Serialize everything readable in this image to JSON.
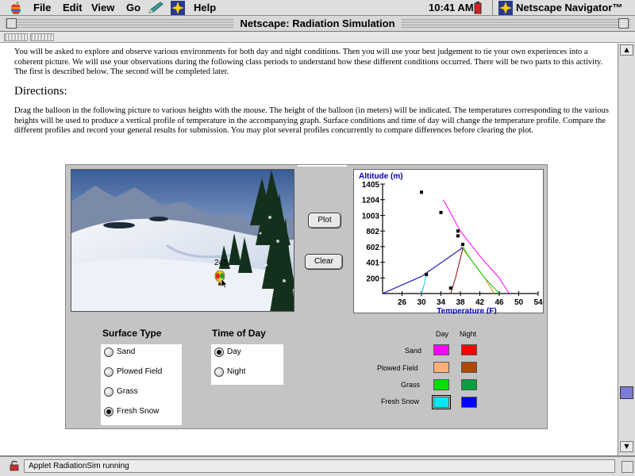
{
  "menubar": {
    "items": [
      "File",
      "Edit",
      "View",
      "Go",
      "Help"
    ],
    "clock": "10:41 AM",
    "app_name": "Netscape Navigator™"
  },
  "window": {
    "title": "Netscape: Radiation Simulation"
  },
  "content": {
    "intro": "You will be asked to explore and observe various environments for both day and night conditions. Then you will use your best judgement to tie your own experiences into a coherent picture. We will use your observations during the following class periods to understand how these different conditions occurred. There will be two parts to this activity. The first is described below. The second will be completed later.",
    "directions_heading": "Directions:",
    "directions": "Drag the balloon in the following picture to various heights with the mouse. The height of the balloon (in meters) will be indicated. The temperatures corresponding to the various heights will be used to produce a vertical profile of temperature in the accompanying graph. Surface conditions and time of day will change the temperature profile. Compare the different profiles and record your general results for submission. You may plot several profiles concurrently to compare differences before clearing the plot."
  },
  "applet": {
    "balloon_altitude": "245",
    "plot_label": "Plot",
    "clear_label": "Clear",
    "surface_type": {
      "label": "Surface Type",
      "options": [
        "Sand",
        "Plowed Field",
        "Grass",
        "Fresh Snow"
      ],
      "selected": "Fresh Snow"
    },
    "time_of_day": {
      "label": "Time of Day",
      "options": [
        "Day",
        "Night"
      ],
      "selected": "Day"
    },
    "legend": {
      "col_day": "Day",
      "col_night": "Night",
      "rows": [
        {
          "label": "Sand",
          "day_color": "#ff00ff",
          "night_color": "#ff0000"
        },
        {
          "label": "Plowed Field",
          "day_color": "#ffb07a",
          "night_color": "#b04a00"
        },
        {
          "label": "Grass",
          "day_color": "#00e000",
          "night_color": "#00a040"
        },
        {
          "label": "Fresh Snow",
          "day_color": "#00e8f8",
          "night_color": "#0000ff"
        }
      ]
    }
  },
  "chart_data": {
    "type": "line",
    "xlabel": "Temperature (F)",
    "ylabel": "Altitude (m)",
    "xlim": [
      22,
      54
    ],
    "ylim": [
      0,
      1405
    ],
    "x_ticks": [
      26,
      30,
      34,
      38,
      42,
      46,
      50,
      54
    ],
    "y_ticks": [
      200,
      401,
      602,
      802,
      1003,
      1204,
      1405
    ],
    "series": [
      {
        "color": "#ff00ff",
        "x": [
          48,
          46,
          42,
          38,
          34.5
        ],
        "y": [
          0,
          200,
          480,
          802,
          1204
        ],
        "marker": "none"
      },
      {
        "color": "#ff8000",
        "x": [
          45,
          43,
          40,
          38
        ],
        "y": [
          0,
          200,
          450,
          610
        ],
        "marker": "none"
      },
      {
        "color": "#00d000",
        "x": [
          46,
          43,
          40,
          38.5
        ],
        "y": [
          0,
          200,
          450,
          600
        ],
        "marker": "none"
      },
      {
        "color": "#8a0000",
        "x": [
          36,
          37,
          38.5
        ],
        "y": [
          0,
          200,
          580
        ],
        "marker": "none"
      },
      {
        "color": "#0000b0",
        "x": [
          22,
          30,
          38.5
        ],
        "y": [
          0,
          220,
          590
        ],
        "marker": "none"
      },
      {
        "color": "#00c8e8",
        "x": [
          30,
          30.5,
          31
        ],
        "y": [
          0,
          100,
          245
        ],
        "marker": "none"
      },
      {
        "color": "#000000",
        "x": [
          30,
          34,
          37.5,
          37.5,
          38.5
        ],
        "y": [
          1300,
          1040,
          802,
          740,
          630
        ],
        "marker": "square"
      },
      {
        "color": "#000000",
        "x": [
          31
        ],
        "y": [
          245
        ],
        "marker": "square"
      },
      {
        "color": "#000000",
        "x": [
          36
        ],
        "y": [
          70
        ],
        "marker": "square"
      }
    ]
  },
  "status": {
    "text": "Applet RadiationSim running"
  }
}
